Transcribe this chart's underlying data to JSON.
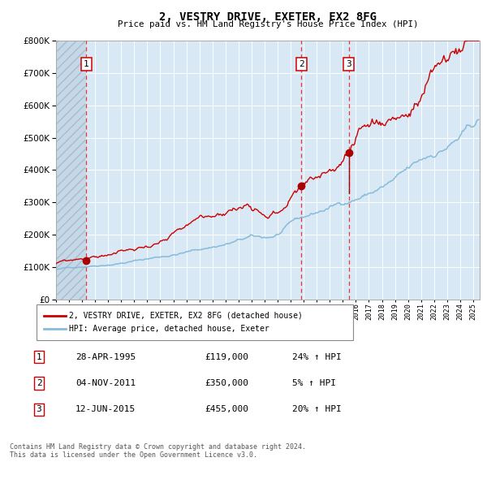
{
  "title": "2, VESTRY DRIVE, EXETER, EX2 8FG",
  "subtitle": "Price paid vs. HM Land Registry's House Price Index (HPI)",
  "sale1_price": 119000,
  "sale1_label": "28-APR-1995",
  "sale1_hpi": "24% ↑ HPI",
  "sale1_x": 1995.33,
  "sale2_price": 350000,
  "sale2_label": "04-NOV-2011",
  "sale2_hpi": "5% ↑ HPI",
  "sale2_x": 2011.83,
  "sale3_price": 455000,
  "sale3_label": "12-JUN-2015",
  "sale3_hpi": "20% ↑ HPI",
  "sale3_x": 2015.45,
  "hpi_line_color": "#85BCDA",
  "price_line_color": "#CC0000",
  "marker_color": "#AA0000",
  "dashed_line_color": "#EE3333",
  "plot_bg_color": "#D8E8F4",
  "hatch_color": "#BBCCDD",
  "ylim_min": 0,
  "ylim_max": 800000,
  "start_year": 1993.0,
  "end_year": 2025.5,
  "legend_label1": "2, VESTRY DRIVE, EXETER, EX2 8FG (detached house)",
  "legend_label2": "HPI: Average price, detached house, Exeter",
  "footer": "Contains HM Land Registry data © Crown copyright and database right 2024.\nThis data is licensed under the Open Government Licence v3.0."
}
